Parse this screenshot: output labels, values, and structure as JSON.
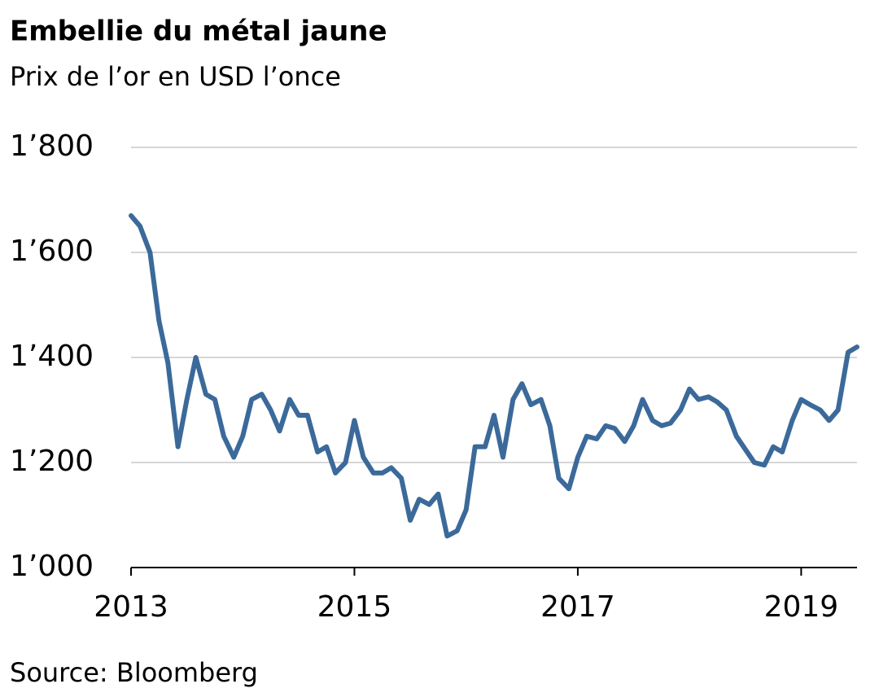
{
  "chart_data": {
    "type": "line",
    "title": "Embellie du métal jaune",
    "subtitle": "Prix de l’or en USD l’once",
    "source": "Source: Bloomberg",
    "x": [
      2013.0,
      2013.08,
      2013.17,
      2013.25,
      2013.33,
      2013.42,
      2013.5,
      2013.58,
      2013.67,
      2013.75,
      2013.83,
      2013.92,
      2014.0,
      2014.08,
      2014.17,
      2014.25,
      2014.33,
      2014.42,
      2014.5,
      2014.58,
      2014.67,
      2014.75,
      2014.83,
      2014.92,
      2015.0,
      2015.08,
      2015.17,
      2015.25,
      2015.33,
      2015.42,
      2015.5,
      2015.58,
      2015.67,
      2015.75,
      2015.83,
      2015.92,
      2016.0,
      2016.08,
      2016.17,
      2016.25,
      2016.33,
      2016.42,
      2016.5,
      2016.58,
      2016.67,
      2016.75,
      2016.83,
      2016.92,
      2017.0,
      2017.08,
      2017.17,
      2017.25,
      2017.33,
      2017.42,
      2017.5,
      2017.58,
      2017.67,
      2017.75,
      2017.83,
      2017.92,
      2018.0,
      2018.08,
      2018.17,
      2018.25,
      2018.33,
      2018.42,
      2018.5,
      2018.58,
      2018.67,
      2018.75,
      2018.83,
      2018.92,
      2019.0,
      2019.08,
      2019.17,
      2019.25,
      2019.33,
      2019.42,
      2019.5
    ],
    "series": [
      {
        "name": "Or",
        "color": "#3b6a9a",
        "values": [
          1670,
          1650,
          1600,
          1470,
          1390,
          1230,
          1320,
          1400,
          1330,
          1320,
          1250,
          1210,
          1250,
          1320,
          1330,
          1300,
          1260,
          1320,
          1290,
          1290,
          1220,
          1230,
          1180,
          1200,
          1280,
          1210,
          1180,
          1180,
          1190,
          1170,
          1090,
          1130,
          1120,
          1140,
          1060,
          1070,
          1110,
          1230,
          1230,
          1290,
          1210,
          1320,
          1350,
          1310,
          1320,
          1270,
          1170,
          1150,
          1210,
          1250,
          1245,
          1270,
          1265,
          1240,
          1270,
          1320,
          1280,
          1270,
          1275,
          1300,
          1340,
          1320,
          1325,
          1315,
          1300,
          1250,
          1225,
          1200,
          1195,
          1230,
          1220,
          1280,
          1320,
          1310,
          1300,
          1280,
          1300,
          1410,
          1420
        ]
      }
    ],
    "xlim": [
      2013,
      2019.5
    ],
    "xticks": [
      2013,
      2015,
      2017,
      2019
    ],
    "ylim": [
      1000,
      1800
    ],
    "yticks": [
      {
        "value": 1000,
        "label": "1’000"
      },
      {
        "value": 1200,
        "label": "1’200"
      },
      {
        "value": 1400,
        "label": "1’400"
      },
      {
        "value": 1600,
        "label": "1’600"
      },
      {
        "value": 1800,
        "label": "1’800"
      }
    ],
    "grid": true
  }
}
